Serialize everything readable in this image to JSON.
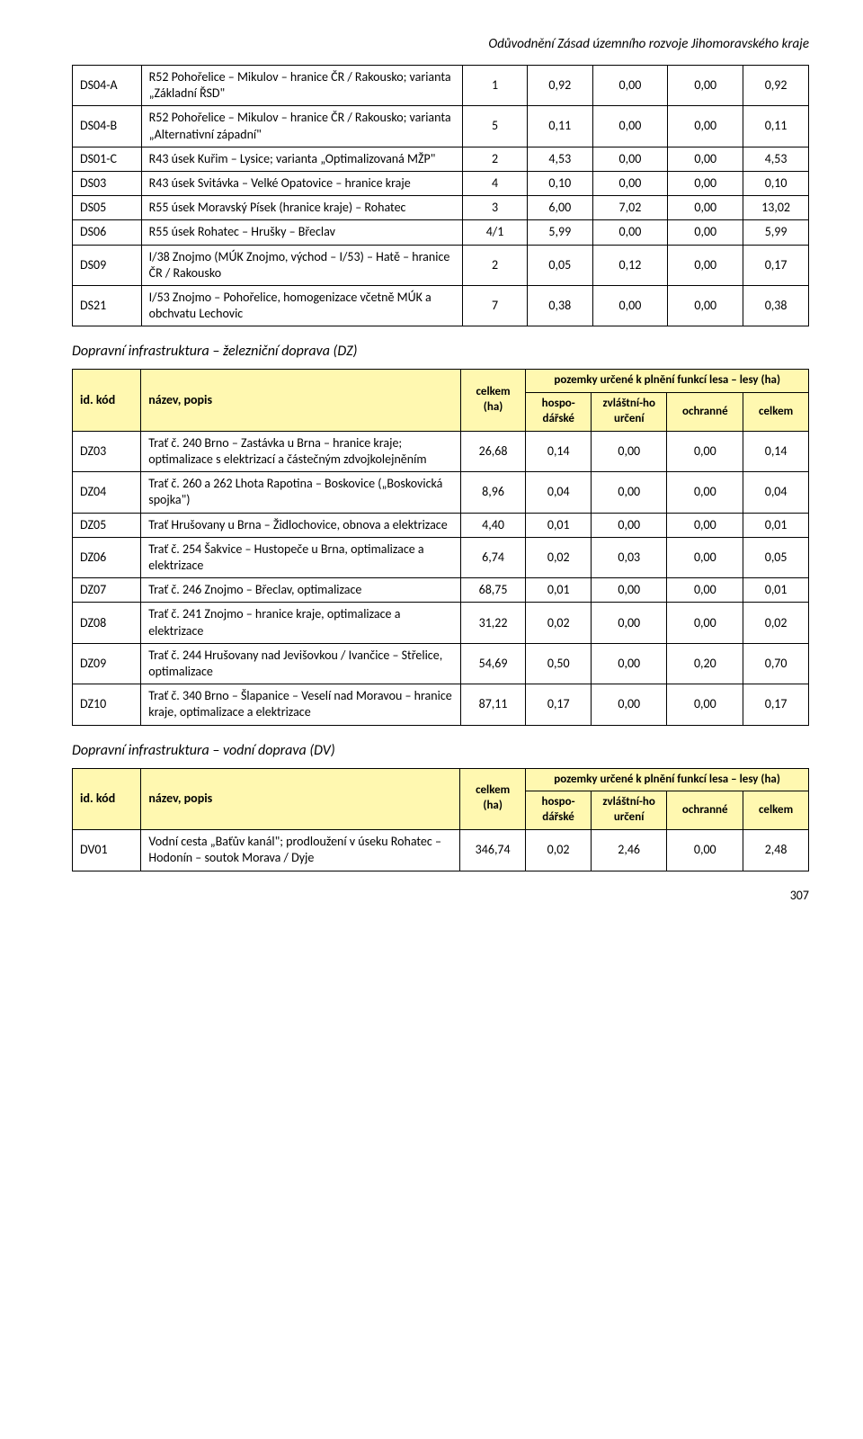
{
  "doc_header": "Odůvodnění Zásad územního rozvoje Jihomoravského kraje",
  "columns": {
    "idkod": "id. kód",
    "nazev": "název, popis",
    "celkem_ha": "celkem (ha)",
    "group": "pozemky určené k plnění funkcí lesa – lesy (ha)",
    "hospo": "hospo-dářské",
    "zvlast": "zvláštní-ho určení",
    "ochranne": "ochranné",
    "celkem": "celkem"
  },
  "table1": {
    "rows": [
      {
        "code": "DS04-A",
        "desc": "R52 Pohořelice – Mikulov – hranice ČR / Rakousko; varianta „Základní ŘSD\"",
        "v": [
          "1",
          "0,92",
          "0,00",
          "0,00",
          "0,92"
        ]
      },
      {
        "code": "DS04-B",
        "desc": "R52 Pohořelice – Mikulov – hranice ČR / Rakousko; varianta „Alternativní západní\"",
        "v": [
          "5",
          "0,11",
          "0,00",
          "0,00",
          "0,11"
        ]
      },
      {
        "code": "DS01-C",
        "desc": "R43 úsek Kuřim – Lysice; varianta „Optimalizovaná MŽP\"",
        "v": [
          "2",
          "4,53",
          "0,00",
          "0,00",
          "4,53"
        ]
      },
      {
        "code": "DS03",
        "desc": "R43 úsek Svitávka – Velké Opatovice – hranice kraje",
        "v": [
          "4",
          "0,10",
          "0,00",
          "0,00",
          "0,10"
        ]
      },
      {
        "code": "DS05",
        "desc": "R55 úsek Moravský Písek (hranice kraje) – Rohatec",
        "v": [
          "3",
          "6,00",
          "7,02",
          "0,00",
          "13,02"
        ]
      },
      {
        "code": "DS06",
        "desc": "R55 úsek Rohatec – Hrušky – Břeclav",
        "v": [
          "4/1",
          "5,99",
          "0,00",
          "0,00",
          "5,99"
        ]
      },
      {
        "code": "DS09",
        "desc": "I/38 Znojmo (MÚK Znojmo, východ – I/53) – Hatě – hranice ČR / Rakousko",
        "v": [
          "2",
          "0,05",
          "0,12",
          "0,00",
          "0,17"
        ]
      },
      {
        "code": "DS21",
        "desc": "I/53 Znojmo – Pohořelice, homogenizace včetně MÚK a obchvatu Lechovic",
        "v": [
          "7",
          "0,38",
          "0,00",
          "0,00",
          "0,38"
        ]
      }
    ]
  },
  "section2_title": "Dopravní infrastruktura – železniční doprava (DZ)",
  "table2": {
    "rows": [
      {
        "code": "DZ03",
        "desc": "Trať č. 240 Brno – Zastávka u Brna – hranice kraje; optimalizace s elektrizací a částečným zdvojkolejněním",
        "v": [
          "26,68",
          "0,14",
          "0,00",
          "0,00",
          "0,14"
        ]
      },
      {
        "code": "DZ04",
        "desc": "Trať č. 260 a 262 Lhota Rapotina – Boskovice („Boskovická spojka\")",
        "v": [
          "8,96",
          "0,04",
          "0,00",
          "0,00",
          "0,04"
        ]
      },
      {
        "code": "DZ05",
        "desc": "Trať Hrušovany u Brna – Židlochovice, obnova a elektrizace",
        "v": [
          "4,40",
          "0,01",
          "0,00",
          "0,00",
          "0,01"
        ]
      },
      {
        "code": "DZ06",
        "desc": "Trať č. 254 Šakvice – Hustopeče u Brna, optimalizace a elektrizace",
        "v": [
          "6,74",
          "0,02",
          "0,03",
          "0,00",
          "0,05"
        ]
      },
      {
        "code": "DZ07",
        "desc": "Trať č. 246 Znojmo – Břeclav, optimalizace",
        "v": [
          "68,75",
          "0,01",
          "0,00",
          "0,00",
          "0,01"
        ]
      },
      {
        "code": "DZ08",
        "desc": "Trať č. 241 Znojmo – hranice kraje, optimalizace a elektrizace",
        "v": [
          "31,22",
          "0,02",
          "0,00",
          "0,00",
          "0,02"
        ]
      },
      {
        "code": "DZ09",
        "desc": "Trať č. 244 Hrušovany nad Jevišovkou / Ivančice – Střelice, optimalizace",
        "v": [
          "54,69",
          "0,50",
          "0,00",
          "0,20",
          "0,70"
        ]
      },
      {
        "code": "DZ10",
        "desc": "Trať č. 340 Brno – Šlapanice – Veselí nad Moravou – hranice kraje, optimalizace a elektrizace",
        "v": [
          "87,11",
          "0,17",
          "0,00",
          "0,00",
          "0,17"
        ]
      }
    ]
  },
  "section3_title": "Dopravní infrastruktura – vodní doprava (DV)",
  "table3": {
    "rows": [
      {
        "code": "DV01",
        "desc": "Vodní cesta „Baťův kanál\"; prodloužení v úseku Rohatec – Hodonín – soutok Morava / Dyje",
        "v": [
          "346,74",
          "0,02",
          "2,46",
          "0,00",
          "2,48"
        ]
      }
    ]
  },
  "pagenum": "307",
  "style": {
    "header_bg": "#fff8b0",
    "border": "#000000",
    "text": "#000000",
    "font": "Calibri",
    "body_fontsize": 14,
    "header_fontsize": 15,
    "section_fontsize": 16
  }
}
